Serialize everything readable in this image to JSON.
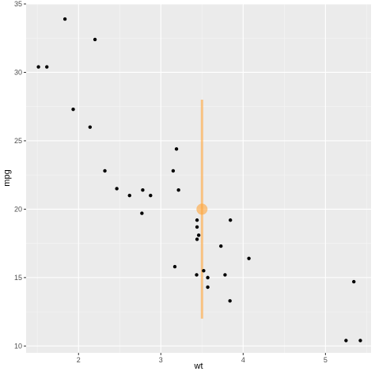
{
  "chart_data": {
    "type": "scatter",
    "title": "",
    "xlabel": "wt",
    "ylabel": "mpg",
    "xlim": [
      1.363,
      5.554
    ],
    "ylim": [
      9.5,
      35.0
    ],
    "x_ticks": [
      2,
      3,
      4,
      5
    ],
    "y_ticks": [
      10,
      15,
      20,
      25,
      30,
      35
    ],
    "x_tick_labels": [
      "2",
      "3",
      "4",
      "5"
    ],
    "y_tick_labels": [
      "10",
      "15",
      "20",
      "25",
      "30",
      "35"
    ],
    "grid": true,
    "legend": "none",
    "colors": {
      "panel_background": "#ebebeb",
      "grid_major": "#ffffff",
      "grid_minor": "#f5f5f5",
      "points": "#000000",
      "summary": "#ffa53a"
    },
    "points": [
      {
        "x": 2.62,
        "y": 21.0
      },
      {
        "x": 2.875,
        "y": 21.0
      },
      {
        "x": 2.32,
        "y": 22.8
      },
      {
        "x": 3.215,
        "y": 21.4
      },
      {
        "x": 3.44,
        "y": 18.7
      },
      {
        "x": 3.46,
        "y": 18.1
      },
      {
        "x": 3.57,
        "y": 14.3
      },
      {
        "x": 3.19,
        "y": 24.4
      },
      {
        "x": 3.15,
        "y": 22.8
      },
      {
        "x": 3.44,
        "y": 19.2
      },
      {
        "x": 3.44,
        "y": 17.8
      },
      {
        "x": 4.07,
        "y": 16.4
      },
      {
        "x": 3.73,
        "y": 17.3
      },
      {
        "x": 3.78,
        "y": 15.2
      },
      {
        "x": 5.25,
        "y": 10.4
      },
      {
        "x": 5.424,
        "y": 10.4
      },
      {
        "x": 5.345,
        "y": 14.7
      },
      {
        "x": 2.2,
        "y": 32.4
      },
      {
        "x": 1.615,
        "y": 30.4
      },
      {
        "x": 1.835,
        "y": 33.9
      },
      {
        "x": 2.465,
        "y": 21.5
      },
      {
        "x": 3.52,
        "y": 15.5
      },
      {
        "x": 3.435,
        "y": 15.2
      },
      {
        "x": 3.84,
        "y": 13.3
      },
      {
        "x": 3.845,
        "y": 19.2
      },
      {
        "x": 1.935,
        "y": 27.3
      },
      {
        "x": 2.14,
        "y": 26.0
      },
      {
        "x": 1.513,
        "y": 30.4
      },
      {
        "x": 3.17,
        "y": 15.8
      },
      {
        "x": 2.77,
        "y": 19.7
      },
      {
        "x": 3.57,
        "y": 15.0
      },
      {
        "x": 2.78,
        "y": 21.4
      }
    ],
    "summary": {
      "x": 3.5,
      "y": 20.0,
      "ymin": 12.0,
      "ymax": 28.0
    }
  }
}
